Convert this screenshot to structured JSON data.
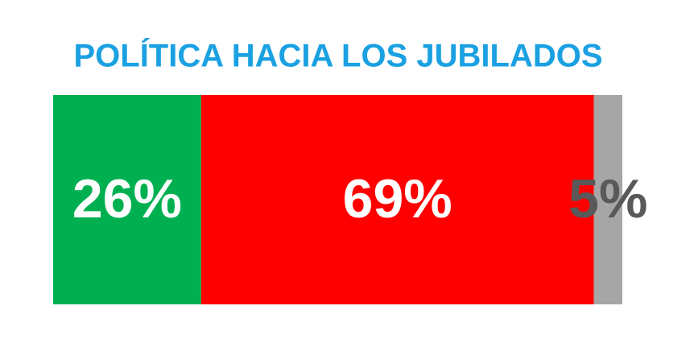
{
  "chart_data": {
    "type": "stacked-bar",
    "title": "POLÍTICA HACIA LOS JUBILADOS",
    "title_color": "#1ba1e2",
    "series": [
      {
        "color": "#00b050",
        "label_color": "#ffffff",
        "values": [
          26
        ],
        "value_labels": [
          "26%"
        ]
      },
      {
        "color": "#ff0000",
        "label_color": "#ffffff",
        "values": [
          69
        ],
        "value_labels": [
          "69%"
        ]
      },
      {
        "color": "#a6a6a6",
        "label_color": "#595959",
        "values": [
          5
        ],
        "value_labels": [
          "5%"
        ]
      }
    ]
  }
}
